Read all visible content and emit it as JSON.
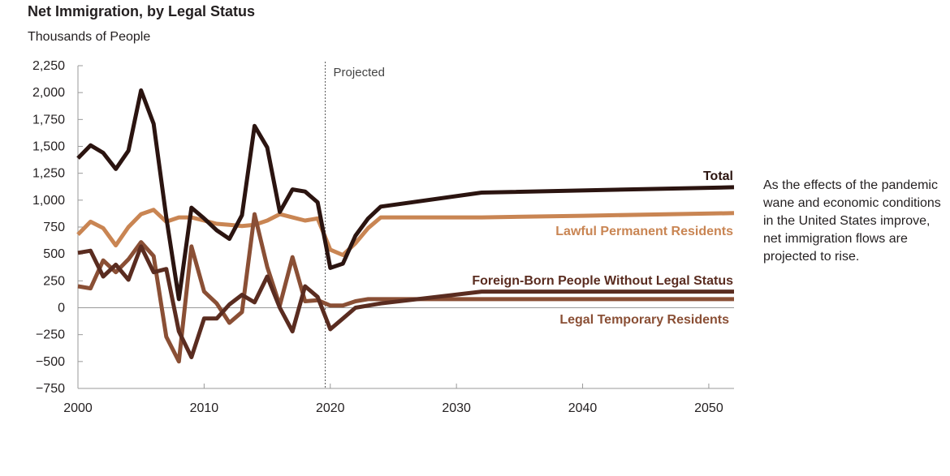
{
  "title": "Net Immigration, by Legal Status",
  "units": "Thousands of People",
  "projected_label": "Projected",
  "note": "As the effects of the pandemic wane and economic conditions in the United States improve, net immigration flows are projected to rise.",
  "colors": {
    "total": "#2b1410",
    "lawful": "#c98553",
    "foreign": "#5a2c20",
    "temporary": "#8a4f35",
    "axis": "#999999",
    "text": "#231f20"
  },
  "chart_data": {
    "type": "line",
    "xlim": [
      2000,
      2052
    ],
    "ylim": [
      -750,
      2250
    ],
    "projection_start": 2019.6,
    "x_ticks": [
      2000,
      2010,
      2020,
      2030,
      2040,
      2050
    ],
    "x_tick_labels": [
      "2000",
      "2010",
      "2020",
      "2030",
      "2040",
      "2050"
    ],
    "y_ticks": [
      2250,
      2000,
      1750,
      1500,
      1250,
      1000,
      750,
      500,
      250,
      0,
      -250,
      -500,
      -750
    ],
    "y_tick_labels": [
      "2,250",
      "2,000",
      "1,750",
      "1,500",
      "1,250",
      "1,000",
      "750",
      "500",
      "250",
      "0",
      "−250",
      "−500",
      "−750"
    ],
    "series": [
      {
        "name": "Lawful Permanent Residents",
        "key": "lawful",
        "x": [
          2000,
          2001,
          2002,
          2003,
          2004,
          2005,
          2006,
          2007,
          2008,
          2009,
          2010,
          2011,
          2012,
          2013,
          2014,
          2015,
          2016,
          2017,
          2018,
          2019,
          2020,
          2021,
          2022,
          2023,
          2024,
          2032,
          2040,
          2052
        ],
        "y": [
          680,
          800,
          740,
          580,
          750,
          870,
          910,
          800,
          840,
          840,
          810,
          780,
          770,
          760,
          770,
          810,
          870,
          840,
          810,
          830,
          540,
          490,
          600,
          740,
          840,
          840,
          855,
          880
        ]
      },
      {
        "name": "Legal Temporary Residents",
        "key": "temporary",
        "x": [
          2000,
          2001,
          2002,
          2003,
          2004,
          2005,
          2006,
          2007,
          2008,
          2009,
          2010,
          2011,
          2012,
          2013,
          2014,
          2015,
          2016,
          2017,
          2018,
          2019,
          2020,
          2021,
          2022,
          2023,
          2024,
          2032,
          2052
        ],
        "y": [
          200,
          180,
          440,
          330,
          450,
          610,
          480,
          -270,
          -500,
          570,
          150,
          40,
          -140,
          -40,
          870,
          380,
          20,
          470,
          60,
          70,
          20,
          20,
          60,
          80,
          80,
          80,
          80
        ]
      },
      {
        "name": "Foreign-Born People Without Legal Status",
        "key": "foreign",
        "x": [
          2000,
          2001,
          2002,
          2003,
          2004,
          2005,
          2006,
          2007,
          2008,
          2009,
          2010,
          2011,
          2012,
          2013,
          2014,
          2015,
          2016,
          2017,
          2018,
          2019,
          2020,
          2021,
          2022,
          2023,
          2024,
          2032,
          2052
        ],
        "y": [
          510,
          530,
          290,
          400,
          260,
          570,
          330,
          360,
          -220,
          -460,
          -100,
          -100,
          30,
          120,
          50,
          290,
          0,
          -220,
          200,
          100,
          -200,
          -100,
          0,
          20,
          40,
          150,
          150
        ]
      },
      {
        "name": "Total",
        "key": "total",
        "x": [
          2000,
          2001,
          2002,
          2003,
          2004,
          2005,
          2006,
          2007,
          2008,
          2009,
          2010,
          2011,
          2012,
          2013,
          2014,
          2015,
          2016,
          2017,
          2018,
          2019,
          2020,
          2021,
          2022,
          2023,
          2024,
          2032,
          2052
        ],
        "y": [
          1390,
          1510,
          1440,
          1290,
          1460,
          2020,
          1710,
          840,
          80,
          930,
          830,
          720,
          640,
          860,
          1690,
          1490,
          890,
          1100,
          1080,
          980,
          370,
          410,
          670,
          830,
          940,
          1070,
          1120
        ]
      }
    ],
    "series_labels": [
      {
        "key": "total",
        "text": "Total"
      },
      {
        "key": "lawful",
        "text": "Lawful Permanent Residents"
      },
      {
        "key": "foreign",
        "text": "Foreign-Born People Without Legal Status"
      },
      {
        "key": "temporary",
        "text": "Legal Temporary Residents"
      }
    ]
  }
}
